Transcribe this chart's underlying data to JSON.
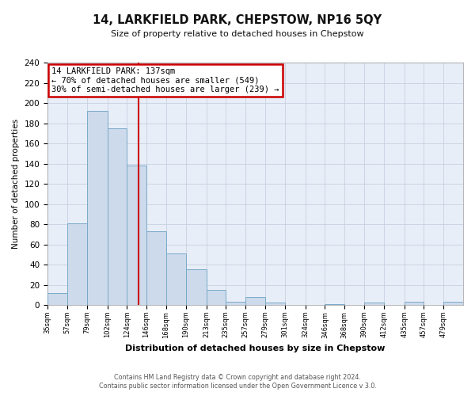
{
  "title": "14, LARKFIELD PARK, CHEPSTOW, NP16 5QY",
  "subtitle": "Size of property relative to detached houses in Chepstow",
  "xlabel": "Distribution of detached houses by size in Chepstow",
  "ylabel": "Number of detached properties",
  "bar_edges": [
    35,
    57,
    79,
    102,
    124,
    146,
    168,
    190,
    213,
    235,
    257,
    279,
    301,
    324,
    346,
    368,
    390,
    412,
    435,
    457,
    479,
    501
  ],
  "bar_heights": [
    12,
    81,
    192,
    175,
    138,
    73,
    51,
    35,
    15,
    3,
    8,
    2,
    0,
    0,
    1,
    0,
    2,
    0,
    3,
    0,
    3
  ],
  "bar_color": "#ccdaeb",
  "bar_edgecolor": "#7aaac8",
  "property_value": 137,
  "redline_color": "#cc0000",
  "annotation_text": "14 LARKFIELD PARK: 137sqm\n← 70% of detached houses are smaller (549)\n30% of semi-detached houses are larger (239) →",
  "annotation_box_color": "#ffffff",
  "annotation_box_edgecolor": "#cc0000",
  "ylim": [
    0,
    240
  ],
  "yticks": [
    0,
    20,
    40,
    60,
    80,
    100,
    120,
    140,
    160,
    180,
    200,
    220,
    240
  ],
  "tick_labels": [
    "35sqm",
    "57sqm",
    "79sqm",
    "102sqm",
    "124sqm",
    "146sqm",
    "168sqm",
    "190sqm",
    "213sqm",
    "235sqm",
    "257sqm",
    "279sqm",
    "301sqm",
    "324sqm",
    "346sqm",
    "368sqm",
    "390sqm",
    "412sqm",
    "435sqm",
    "457sqm",
    "479sqm"
  ],
  "footer_line1": "Contains HM Land Registry data © Crown copyright and database right 2024.",
  "footer_line2": "Contains public sector information licensed under the Open Government Licence v 3.0.",
  "background_color": "#ffffff",
  "plot_bg_color": "#e8eef8",
  "grid_color": "#c8d0e0"
}
